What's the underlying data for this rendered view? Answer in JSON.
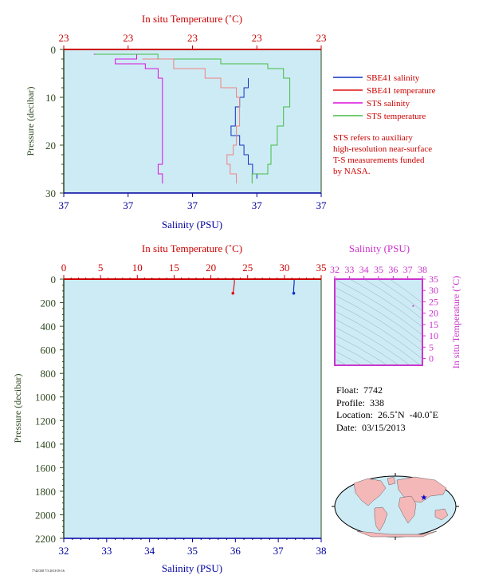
{
  "colors": {
    "plot_bg": "#cdebf5",
    "sbe_salinity": "#1030c0",
    "sbe_temperature": "#e01010",
    "sts_salinity": "#dd10dd",
    "sts_temperature": "#44bb44",
    "temp_trace_light": "#f08080",
    "sal_axis": "#0000a0",
    "temp_axis": "#cc0000",
    "pressure_axis": "#304820",
    "ts_axis": "#cc33cc",
    "land": "#f4b8b8",
    "ocean": "#cdebf5"
  },
  "chart_data": [
    {
      "type": "line",
      "title": "",
      "top_axis_label": "In situ Temperature (˚C)",
      "top_tick_labels": [
        "23",
        "23",
        "23",
        "23",
        "23"
      ],
      "xlabel": "Salinity (PSU)",
      "bottom_tick_labels": [
        "37",
        "37",
        "37",
        "37",
        "37"
      ],
      "ylabel": "Pressure (decibar)",
      "y_ticks": [
        0,
        10,
        20,
        30
      ],
      "ylim": [
        30,
        0
      ],
      "legend": {
        "placement": "right",
        "entries": [
          "SBE41 salinity",
          "SBE41 temperature",
          "STS salinity",
          "STS temperature"
        ]
      },
      "note": [
        "STS refers to auxiliary",
        "high-resolution near-surface",
        "T-S measurements funded",
        "by NASA."
      ],
      "series": [
        {
          "name": "SBE41 salinity",
          "x": [
            37.36,
            37.36,
            37.35,
            37.34,
            37.33,
            37.33,
            37.32,
            37.34,
            37.35,
            37.36,
            37.37,
            37.38
          ],
          "y": [
            6,
            8,
            10,
            12,
            14,
            16,
            18,
            20,
            22,
            24,
            26,
            27
          ]
        },
        {
          "name": "STS salinity",
          "x": [
            37.0,
            37.1,
            37.05,
            37.12,
            37.15,
            37.16,
            37.16,
            37.16,
            37.16,
            37.16,
            37.15,
            37.16
          ],
          "y": [
            1,
            2,
            3,
            4,
            6,
            8,
            12,
            16,
            20,
            24,
            26,
            28
          ]
        },
        {
          "name": "STS temperature",
          "x": [
            23.0,
            23.2,
            23.4,
            23.55,
            23.6,
            23.62,
            23.62,
            23.6,
            23.58,
            23.56,
            23.55,
            23.5
          ],
          "y": [
            1,
            2,
            3,
            4,
            6,
            8,
            12,
            16,
            20,
            24,
            26,
            28
          ]
        },
        {
          "name": "SBE41 temperature",
          "x": [
            23.15,
            23.25,
            23.35,
            23.4,
            23.45,
            23.46,
            23.46,
            23.45,
            23.44,
            23.42,
            23.43,
            23.45
          ],
          "y": [
            2,
            4,
            6,
            8,
            10,
            12,
            16,
            20,
            22,
            24,
            26,
            28
          ]
        }
      ]
    },
    {
      "type": "line",
      "title": "",
      "top_axis_label": "In situ Temperature (˚C)",
      "top_ticks": [
        0,
        5,
        10,
        15,
        20,
        25,
        30,
        35
      ],
      "xlabel": "Salinity (PSU)",
      "bottom_ticks": [
        32,
        33,
        34,
        35,
        36,
        37,
        38
      ],
      "ylabel": "Pressure (decibar)",
      "y_ticks": [
        0,
        200,
        400,
        600,
        800,
        1000,
        1200,
        1400,
        1600,
        1800,
        2000,
        2200
      ],
      "ylim": [
        2200,
        0
      ],
      "xlim_salinity": [
        32,
        38
      ],
      "xlim_temperature": [
        0,
        35
      ],
      "series": [
        {
          "name": "SBE41 temperature",
          "x": [
            23.2,
            23.2,
            23.1,
            23.0
          ],
          "y": [
            0,
            30,
            80,
            120
          ]
        },
        {
          "name": "SBE41 salinity",
          "x": [
            37.37,
            37.37,
            37.36,
            37.36
          ],
          "y": [
            0,
            30,
            80,
            120
          ]
        }
      ]
    },
    {
      "type": "scatter",
      "title": "",
      "top_axis_label": "Salinity (PSU)",
      "top_ticks": [
        32,
        33,
        34,
        35,
        36,
        37,
        38
      ],
      "right_axis_label": "In situ Temperature (˚C)",
      "right_ticks": [
        0,
        5,
        10,
        15,
        20,
        25,
        30,
        35
      ],
      "xlim": [
        32,
        38
      ],
      "ylim": [
        -3,
        35
      ],
      "series": [
        {
          "name": "T-S",
          "x": [
            37.36,
            37.37
          ],
          "y": [
            23.1,
            23.3
          ]
        }
      ]
    }
  ],
  "info": {
    "float": "Float:  7742",
    "profile": "Profile:  338",
    "location": "Location:  26.5˚N  -40.0˚E",
    "date": "Date:  03/15/2013"
  },
  "map": {
    "marker_lat": 26.5,
    "marker_lon": -40.0
  },
  "footer_code": "7742/338 7/3 2013-03-16"
}
